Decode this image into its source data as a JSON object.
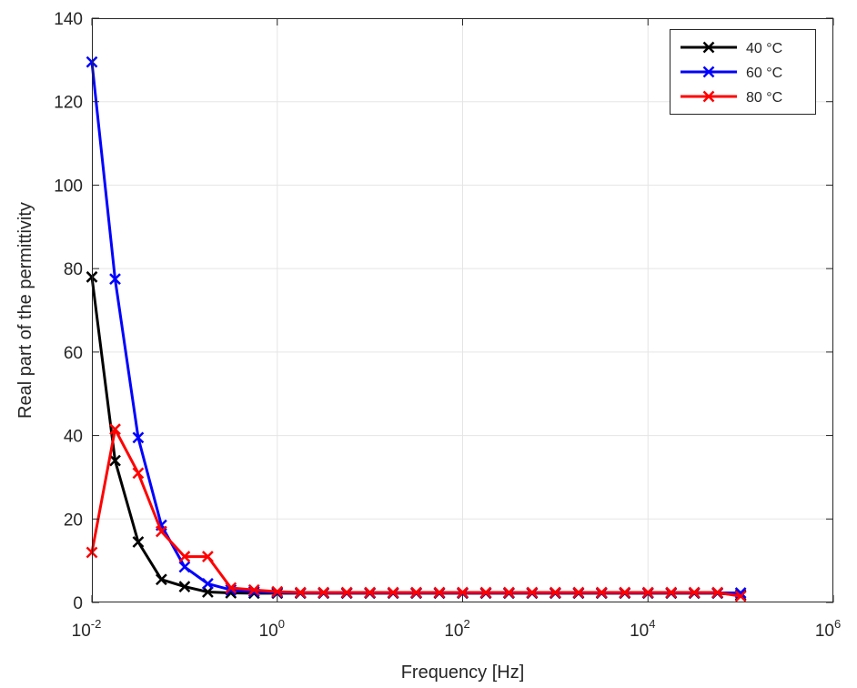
{
  "chart_data": {
    "type": "line",
    "title": "",
    "xlabel": "Frequency [Hz]",
    "ylabel": "Real part of the permittivity",
    "xscale": "log",
    "xlim": [
      0.01,
      1000000
    ],
    "ylim": [
      0,
      140
    ],
    "grid": true,
    "legend_position": "top-right",
    "marker": "x",
    "x_ticks": [
      {
        "base": "10",
        "exp": "-2",
        "value": 0.01
      },
      {
        "base": "10",
        "exp": "0",
        "value": 1
      },
      {
        "base": "10",
        "exp": "2",
        "value": 100
      },
      {
        "base": "10",
        "exp": "4",
        "value": 10000
      },
      {
        "base": "10",
        "exp": "6",
        "value": 1000000
      }
    ],
    "y_ticks": [
      "0",
      "20",
      "40",
      "60",
      "80",
      "100",
      "120",
      "140"
    ],
    "x": [
      0.01,
      0.0178,
      0.0316,
      0.0562,
      0.1,
      0.178,
      0.316,
      0.562,
      1,
      1.78,
      3.16,
      5.62,
      10,
      17.8,
      31.6,
      56.2,
      100,
      178,
      316,
      562,
      1000,
      1780,
      3160,
      5620,
      10000,
      17800,
      31600,
      56200,
      100000
    ],
    "series": [
      {
        "name": "40 °C",
        "color": "#000000",
        "values": [
          78,
          34,
          14.5,
          5.5,
          3.8,
          2.5,
          2.3,
          2.2,
          2.2,
          2.2,
          2.2,
          2.2,
          2.2,
          2.2,
          2.2,
          2.2,
          2.2,
          2.2,
          2.2,
          2.2,
          2.2,
          2.2,
          2.2,
          2.2,
          2.2,
          2.2,
          2.2,
          2.2,
          1.8
        ]
      },
      {
        "name": "60 °C",
        "color": "#0000ff",
        "values": [
          129.5,
          77.5,
          39.5,
          18.5,
          8.5,
          4.5,
          3.0,
          2.6,
          2.4,
          2.3,
          2.3,
          2.3,
          2.3,
          2.3,
          2.3,
          2.3,
          2.3,
          2.3,
          2.3,
          2.3,
          2.3,
          2.3,
          2.3,
          2.3,
          2.3,
          2.3,
          2.3,
          2.3,
          2.3
        ]
      },
      {
        "name": "80 °C",
        "color": "#ff0000",
        "values": [
          12,
          41.5,
          31,
          17,
          11,
          11,
          3.5,
          3.0,
          2.6,
          2.4,
          2.4,
          2.4,
          2.4,
          2.4,
          2.4,
          2.4,
          2.4,
          2.4,
          2.4,
          2.4,
          2.4,
          2.4,
          2.4,
          2.4,
          2.4,
          2.4,
          2.4,
          2.4,
          1.5
        ]
      }
    ]
  }
}
